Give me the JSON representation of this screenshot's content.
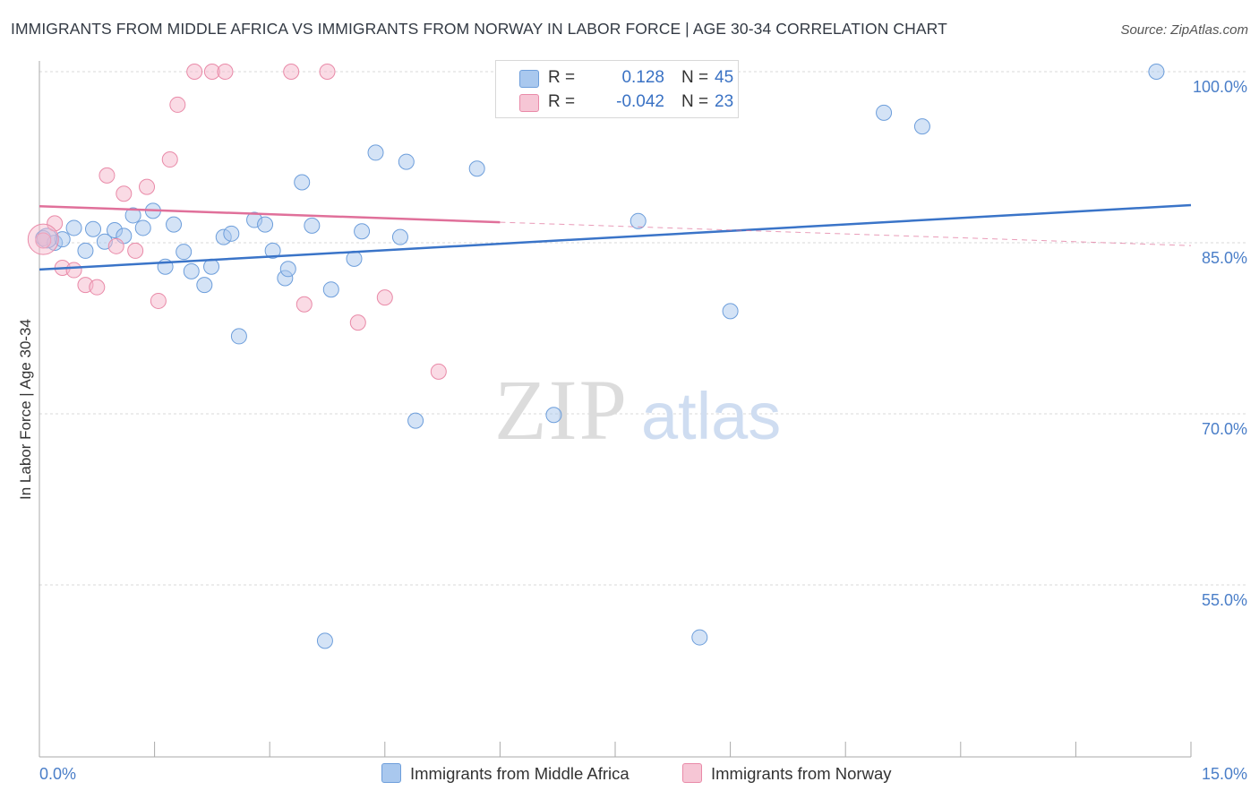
{
  "title": "IMMIGRANTS FROM MIDDLE AFRICA VS IMMIGRANTS FROM NORWAY IN LABOR FORCE | AGE 30-34 CORRELATION CHART",
  "source": "Source: ZipAtlas.com",
  "watermark": {
    "zip": "ZIP",
    "atlas": "atlas"
  },
  "colors": {
    "blue_fill": "#a9c8ee",
    "blue_stroke": "#6d9edb",
    "blue_line": "#3a74c8",
    "pink_fill": "#f6b8cb",
    "pink_stroke": "#e98aa8",
    "pink_line": "#e0709a",
    "tick_text": "#4a7ec8",
    "grid": "#d9d9d9"
  },
  "legend": {
    "rows": [
      {
        "r_label": "R =",
        "r_value": "0.128",
        "n_label": "N =",
        "n_value": "45"
      },
      {
        "r_label": "R =",
        "r_value": "-0.042",
        "n_label": "N =",
        "n_value": "23"
      }
    ],
    "placement": "top-center"
  },
  "chart_data": {
    "type": "scatter",
    "title": "IMMIGRANTS FROM MIDDLE AFRICA VS IMMIGRANTS FROM NORWAY IN LABOR FORCE | AGE 30-34 CORRELATION CHART",
    "xlabel": "",
    "ylabel": "In Labor Force | Age 30-34",
    "xlim": [
      0,
      15
    ],
    "ylim": [
      38,
      101.5
    ],
    "x_ticks": [
      {
        "value": 0,
        "label": "0.0%"
      },
      {
        "value": 15,
        "label": "15.0%"
      }
    ],
    "y_ticks": [
      {
        "value": 100,
        "label": "100.0%"
      },
      {
        "value": 85,
        "label": "85.0%"
      },
      {
        "value": 70,
        "label": "70.0%"
      },
      {
        "value": 55,
        "label": "55.0%"
      }
    ],
    "grid": true,
    "series": [
      {
        "name": "Immigrants from Middle Africa",
        "color": "blue",
        "points": [
          [
            0.05,
            85.4
          ],
          [
            0.2,
            85.0
          ],
          [
            0.3,
            85.3
          ],
          [
            0.45,
            86.3
          ],
          [
            0.6,
            84.3
          ],
          [
            0.7,
            86.2
          ],
          [
            0.85,
            85.1
          ],
          [
            0.98,
            86.1
          ],
          [
            1.1,
            85.6
          ],
          [
            1.22,
            87.4
          ],
          [
            1.35,
            86.3
          ],
          [
            1.48,
            87.8
          ],
          [
            1.64,
            82.9
          ],
          [
            1.75,
            86.6
          ],
          [
            1.88,
            84.2
          ],
          [
            1.98,
            82.5
          ],
          [
            2.15,
            81.3
          ],
          [
            2.24,
            82.9
          ],
          [
            2.4,
            85.5
          ],
          [
            2.5,
            85.8
          ],
          [
            2.6,
            76.8
          ],
          [
            2.8,
            87.0
          ],
          [
            2.94,
            86.6
          ],
          [
            3.04,
            84.3
          ],
          [
            3.2,
            81.9
          ],
          [
            3.24,
            82.7
          ],
          [
            3.42,
            90.3
          ],
          [
            3.55,
            86.5
          ],
          [
            3.72,
            50.1
          ],
          [
            3.8,
            80.9
          ],
          [
            4.1,
            83.6
          ],
          [
            4.2,
            86.0
          ],
          [
            4.38,
            92.9
          ],
          [
            4.7,
            85.5
          ],
          [
            4.78,
            92.1
          ],
          [
            4.9,
            69.4
          ],
          [
            5.7,
            91.5
          ],
          [
            6.7,
            69.9
          ],
          [
            7.8,
            86.9
          ],
          [
            8.6,
            50.4
          ],
          [
            8.95,
            100.0
          ],
          [
            9.0,
            79.0
          ],
          [
            11.0,
            96.4
          ],
          [
            11.5,
            95.2
          ],
          [
            14.55,
            100.0
          ]
        ],
        "trend": {
          "x": [
            0,
            15
          ],
          "y": [
            82.65,
            88.3
          ],
          "style": "solid"
        }
      },
      {
        "name": "Immigrants from Norway",
        "color": "pink",
        "points": [
          [
            0.05,
            85.2
          ],
          [
            0.2,
            86.7
          ],
          [
            0.3,
            82.8
          ],
          [
            0.45,
            82.6
          ],
          [
            0.6,
            81.3
          ],
          [
            0.75,
            81.1
          ],
          [
            0.88,
            90.9
          ],
          [
            1.0,
            84.7
          ],
          [
            1.1,
            89.3
          ],
          [
            1.25,
            84.3
          ],
          [
            1.4,
            89.9
          ],
          [
            1.55,
            79.9
          ],
          [
            1.7,
            92.3
          ],
          [
            1.8,
            97.1
          ],
          [
            2.02,
            100.0
          ],
          [
            2.25,
            100.0
          ],
          [
            2.42,
            100.0
          ],
          [
            3.28,
            100.0
          ],
          [
            3.45,
            79.6
          ],
          [
            3.75,
            100.0
          ],
          [
            4.15,
            78.0
          ],
          [
            4.5,
            80.2
          ],
          [
            5.2,
            73.7
          ]
        ],
        "trend": {
          "x": [
            0,
            6.0
          ],
          "y": [
            88.2,
            86.8
          ],
          "style": "solid"
        },
        "trend_extension": {
          "x": [
            6.0,
            15
          ],
          "y": [
            86.8,
            84.75
          ],
          "style": "dashed"
        }
      }
    ],
    "legend_entries": [
      "Immigrants from Middle Africa",
      "Immigrants from Norway"
    ]
  }
}
